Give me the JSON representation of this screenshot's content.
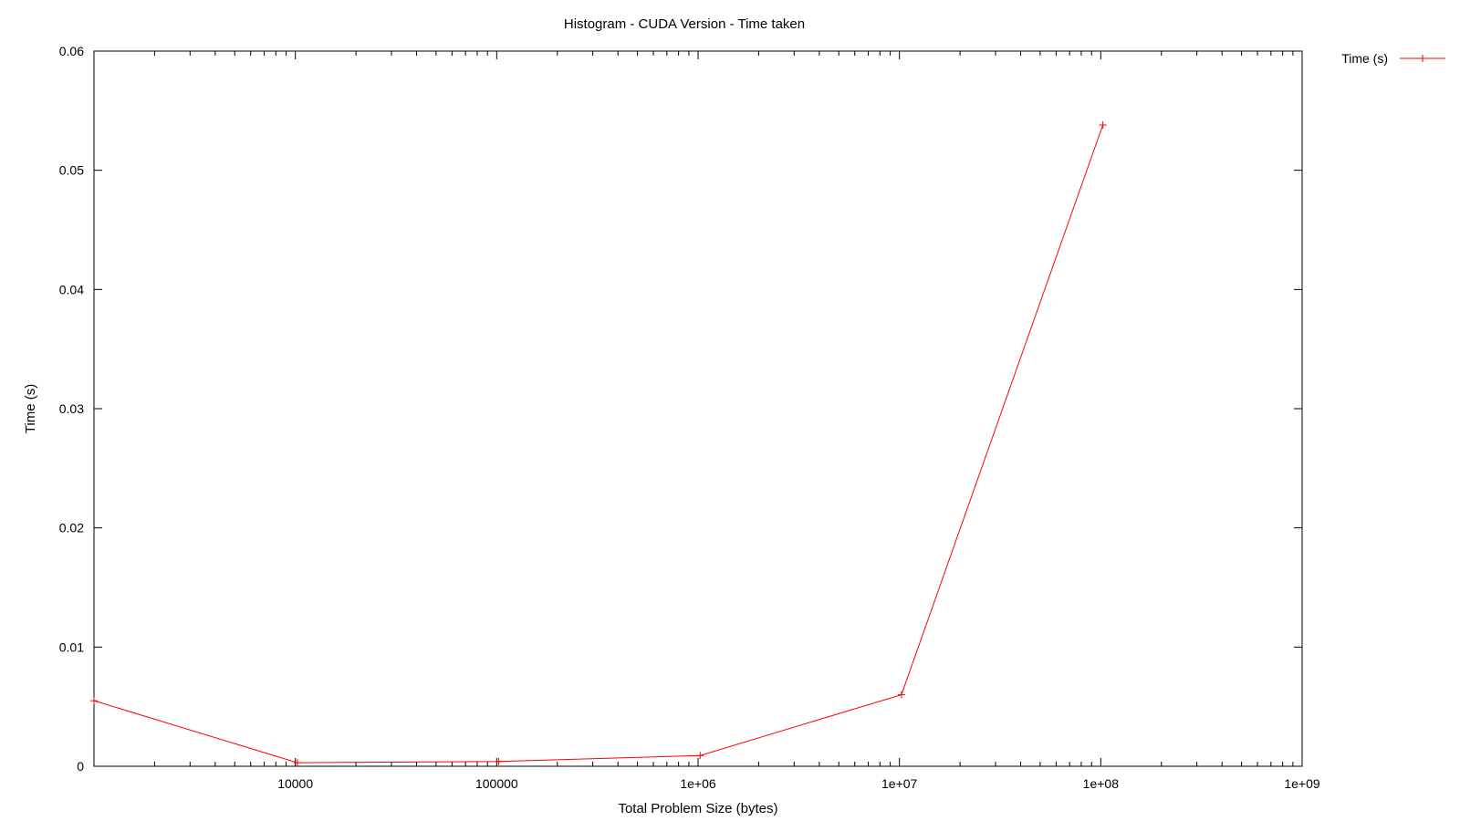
{
  "chart_data": {
    "type": "line",
    "title": "Histogram - CUDA Version - Time taken",
    "xlabel": "Total Problem Size (bytes)",
    "ylabel": "Time (s)",
    "x_scale": "log",
    "xlim": [
      1000,
      1000000000
    ],
    "ylim": [
      0,
      0.06
    ],
    "x_ticks": [
      "10000",
      "100000",
      "1e+06",
      "1e+07",
      "1e+08",
      "1e+09"
    ],
    "y_ticks": [
      "0",
      "0.01",
      "0.02",
      "0.03",
      "0.04",
      "0.05",
      "0.06"
    ],
    "grid": false,
    "legend_position": "top-right, outside plot",
    "series": [
      {
        "name": "Time (s)",
        "color": "#ff0000",
        "marker": "plus",
        "x": [
          1000,
          10240,
          102400,
          1024000,
          10240000,
          102400000
        ],
        "y": [
          0.0055,
          0.0003,
          0.0004,
          0.0009,
          0.006,
          0.0538
        ]
      }
    ]
  }
}
